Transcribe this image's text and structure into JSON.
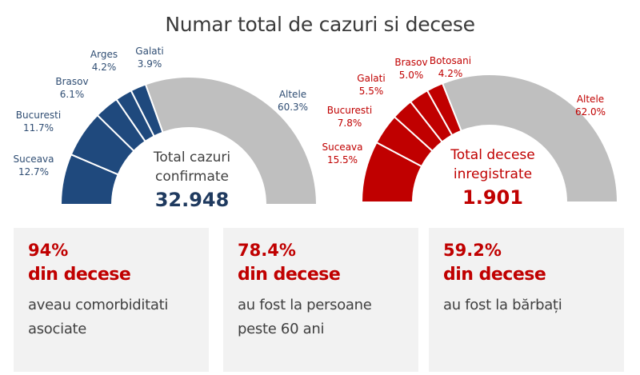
{
  "title": "Numar total de cazuri si decese",
  "colors": {
    "cases": "#1f497d",
    "cases_label": "#2f4d73",
    "deaths": "#c00000",
    "deaths_label": "#c00000",
    "other": "#bfbfbf",
    "box_bg": "#f2f2f2"
  },
  "chart_data": [
    {
      "type": "pie",
      "subtype": "half-donut",
      "name": "cases",
      "categories": [
        "Suceava",
        "Bucuresti",
        "Brasov",
        "Arges",
        "Galati",
        "Altele"
      ],
      "values": [
        12.7,
        11.7,
        6.1,
        4.2,
        3.9,
        60.3
      ],
      "value_labels": [
        "12.7%",
        "11.7%",
        "6.1%",
        "4.2%",
        "3.9%",
        "60.3%"
      ],
      "center_label": "Total cazuri",
      "center_label_2": "confirmate",
      "center_value": "32.948"
    },
    {
      "type": "pie",
      "subtype": "half-donut",
      "name": "deaths",
      "categories": [
        "Suceava",
        "Bucuresti",
        "Galati",
        "Brasov",
        "Botosani",
        "Altele"
      ],
      "values": [
        15.5,
        7.8,
        5.5,
        5.0,
        4.2,
        62.0
      ],
      "value_labels": [
        "15.5%",
        "7.8%",
        "5.5%",
        "5.0%",
        "4.2%",
        "62.0%"
      ],
      "center_label": "Total decese",
      "center_label_2": "inregistrate",
      "center_value": "1.901"
    }
  ],
  "boxes": [
    {
      "pct": "94%",
      "sub": "din decese",
      "desc1": "aveau comorbiditati",
      "desc2": "asociate"
    },
    {
      "pct": "78.4%",
      "sub": "din decese",
      "desc1": "au fost la persoane",
      "desc2": "peste 60 ani"
    },
    {
      "pct": "59.2%",
      "sub": "din decese",
      "desc1": "au fost la bărbați",
      "desc2": ""
    }
  ]
}
